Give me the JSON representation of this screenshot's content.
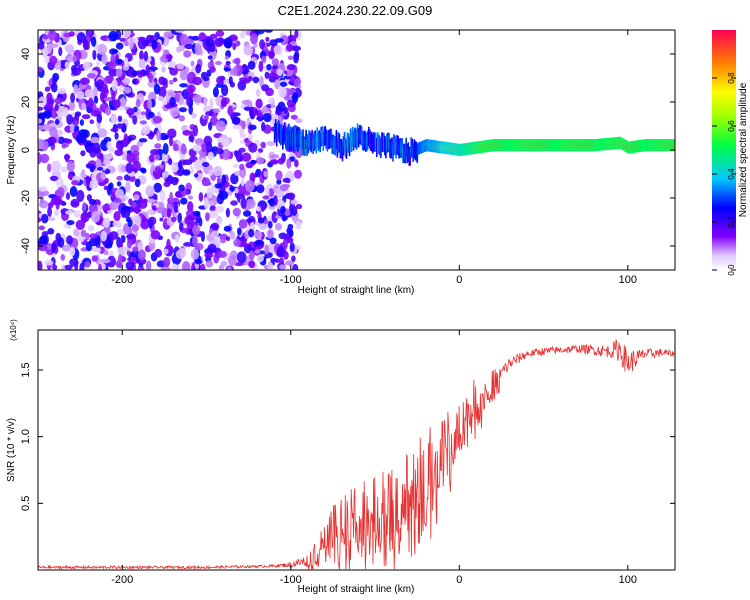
{
  "title": "C2E1.2024.230.22.09.G09",
  "colorbar": {
    "label": "Normalized spectral amplitude",
    "ticks": [
      "0.0",
      "0.2",
      "0.4",
      "0.6",
      "0.8"
    ],
    "tick_values": [
      0.0,
      0.2,
      0.4,
      0.6,
      0.8
    ],
    "range": [
      0,
      1
    ]
  },
  "colors": {
    "snr_line": "#e83030",
    "axes": "#000000"
  },
  "chart_data": [
    {
      "type": "heatmap",
      "xlabel": "Height of straight line (km)",
      "ylabel": "Frequency (Hz)",
      "xlim": [
        -250,
        128
      ],
      "ylim": [
        -50,
        50
      ],
      "xticks": [
        -200,
        -100,
        0,
        100
      ],
      "yticks": [
        -40,
        -20,
        0,
        20,
        40
      ],
      "ridge_x": [
        -110,
        -100,
        -90,
        -80,
        -70,
        -60,
        -50,
        -40,
        -30,
        -20,
        -10,
        0,
        20,
        40,
        60,
        80,
        95,
        100,
        110,
        128
      ],
      "ridge_y": [
        7,
        5,
        3,
        5,
        1,
        6,
        2,
        1,
        -1,
        2,
        1,
        0,
        2,
        2,
        2,
        2,
        3,
        1,
        2,
        2
      ],
      "noise_region_x": [
        -250,
        -95
      ]
    },
    {
      "type": "line",
      "xlabel": "Height of straight line (km)",
      "ylabel": "SNR (10 * v/v)",
      "y_multiplier": "(x10⁴)",
      "xlim": [
        -250,
        128
      ],
      "ylim": [
        0,
        1.8
      ],
      "xticks": [
        -200,
        -100,
        0,
        100
      ],
      "yticks": [
        0.5,
        1.0,
        1.5
      ],
      "ytick_labels": [
        "0.5",
        "1.0",
        "1.5"
      ],
      "series": [
        {
          "x": [
            -250,
            -200,
            -150,
            -110,
            -100,
            -90,
            -80,
            -70,
            -60,
            -50,
            -40,
            -30,
            -20,
            -10,
            0,
            10,
            20,
            30,
            40,
            50,
            60,
            70,
            80,
            90,
            95,
            100,
            110,
            120,
            128
          ],
          "y": [
            0.02,
            0.02,
            0.02,
            0.03,
            0.04,
            0.07,
            0.2,
            0.35,
            0.42,
            0.4,
            0.45,
            0.55,
            0.7,
            0.85,
            1.05,
            1.25,
            1.4,
            1.55,
            1.62,
            1.64,
            1.65,
            1.66,
            1.65,
            1.64,
            1.66,
            1.55,
            1.62,
            1.63,
            1.62
          ],
          "spread": [
            0.01,
            0.01,
            0.01,
            0.01,
            0.02,
            0.05,
            0.15,
            0.25,
            0.3,
            0.3,
            0.35,
            0.35,
            0.35,
            0.3,
            0.25,
            0.2,
            0.1,
            0.05,
            0.03,
            0.03,
            0.03,
            0.03,
            0.04,
            0.05,
            0.1,
            0.1,
            0.04,
            0.03,
            0.02
          ]
        }
      ]
    }
  ]
}
